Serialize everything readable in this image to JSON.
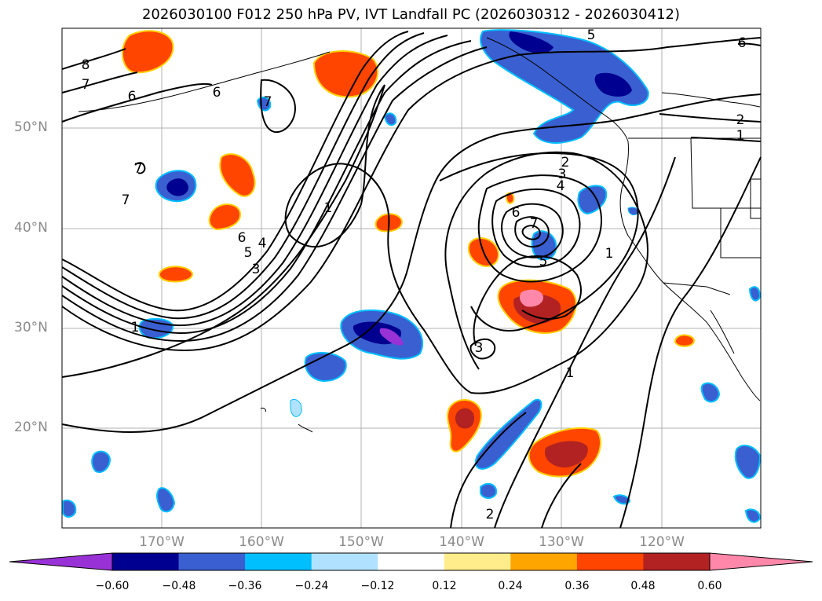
{
  "title": "2026030100 F012 250 hPa PV, IVT Landfall PC (2026030312 - 2026030412)",
  "lat_labels": [
    "50°N",
    "40°N",
    "30°N",
    "20°N"
  ],
  "lon_labels": [
    "170°W",
    "160°W",
    "150°W",
    "140°W",
    "130°W",
    "120°W"
  ],
  "colorbar": {
    "colors": [
      "#9932d6",
      "#000090",
      "#3a5fd0",
      "#00bfff",
      "#b0e2ff",
      "#ffffff",
      "#ffec8b",
      "#ffa500",
      "#ff4500",
      "#b22222",
      "#ff88aa"
    ],
    "ticks": [
      "−0.60",
      "−0.48",
      "−0.36",
      "−0.24",
      "−0.12",
      "0.12",
      "0.24",
      "0.36",
      "0.48",
      "0.60"
    ]
  },
  "contour_labels": [
    "8",
    "7",
    "6",
    "6",
    "7",
    "7",
    "7",
    "6",
    "5",
    "4",
    "3",
    "1",
    "1",
    "5",
    "2",
    "1",
    "2",
    "3",
    "4",
    "6",
    "7",
    "5",
    "3",
    "1",
    "1",
    "2",
    "6"
  ]
}
